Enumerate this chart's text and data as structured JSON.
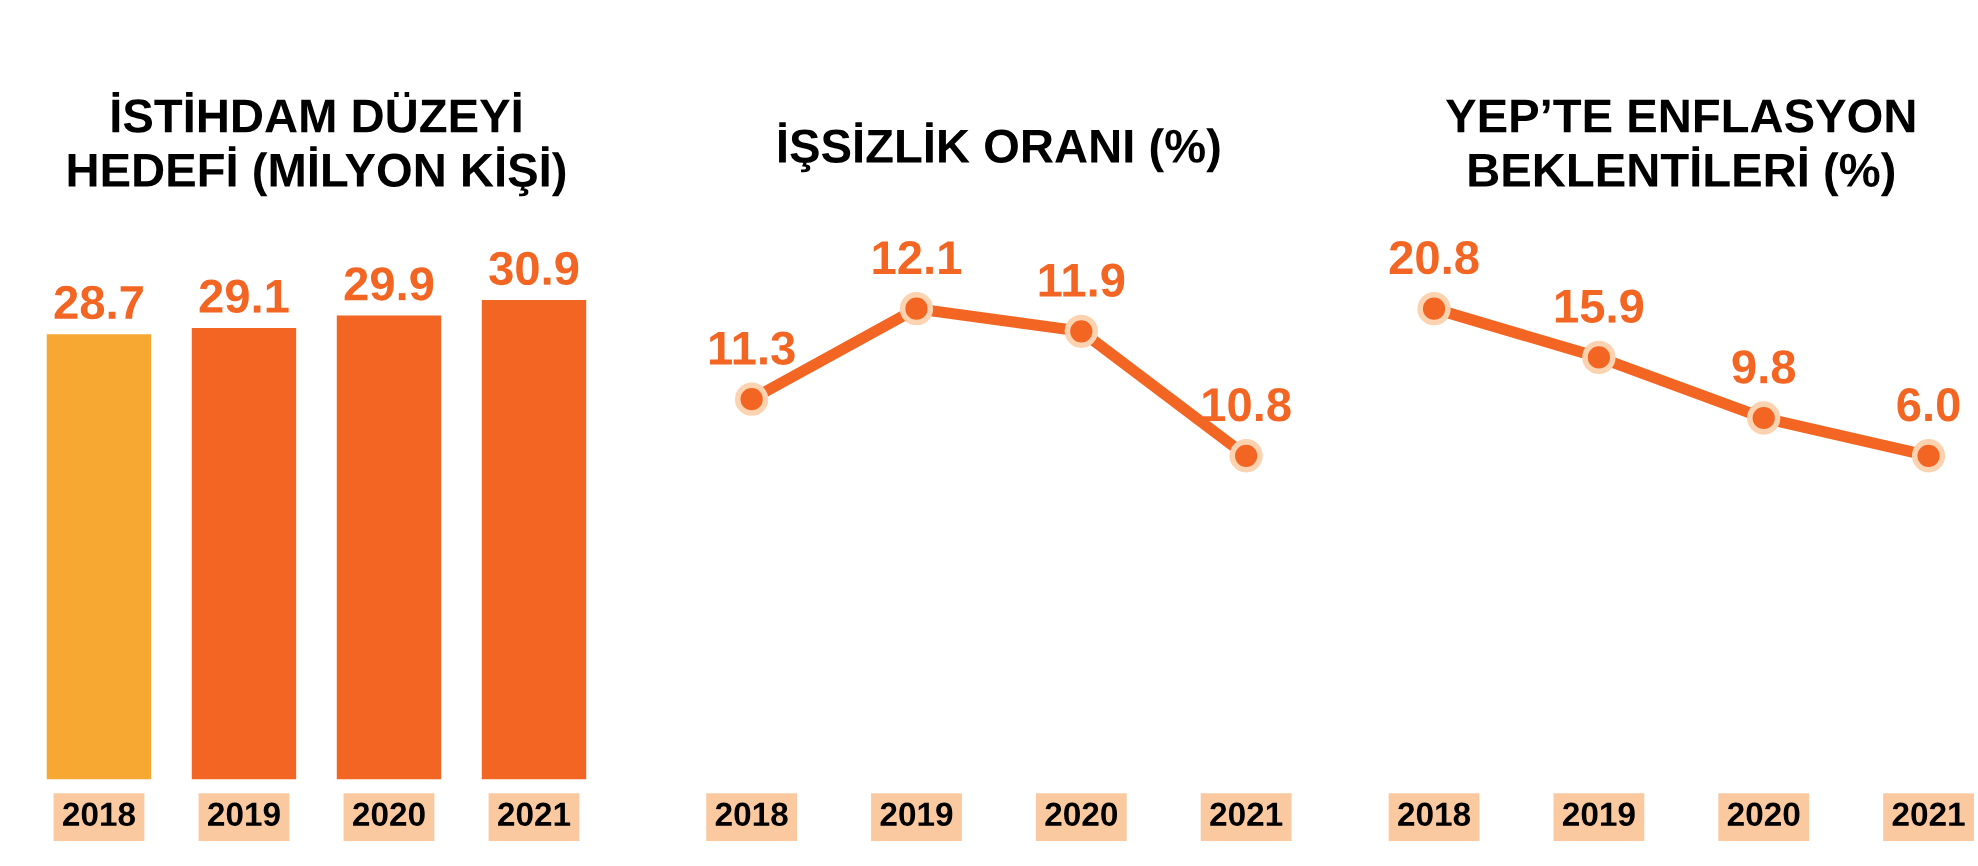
{
  "chart_data": [
    {
      "type": "bar",
      "title": "İSTİHDAM DÜZEYİ\nHEDEFİ (MİLYON KİŞİ)",
      "categories": [
        "2018",
        "2019",
        "2020",
        "2021"
      ],
      "values": [
        28.7,
        29.1,
        29.9,
        30.9
      ],
      "colors": [
        "#f7a833",
        "#f26522",
        "#f26522",
        "#f26522"
      ],
      "data_labels": true
    },
    {
      "type": "line",
      "title": "İŞSİZLİK ORANI (%)",
      "categories": [
        "2018",
        "2019",
        "2020",
        "2021"
      ],
      "series": [
        {
          "color": "#f26522",
          "values": [
            11.3,
            12.1,
            11.9,
            10.8
          ]
        }
      ],
      "marker": "circle",
      "line_style": "solid",
      "data_labels": true
    },
    {
      "type": "line",
      "title": "YEP’TE ENFLASYON\nBEKLENTİLERİ (%)",
      "categories": [
        "2018",
        "2019",
        "2020",
        "2021"
      ],
      "series": [
        {
          "color": "#f26522",
          "values": [
            20.8,
            15.9,
            9.8,
            6.0
          ],
          "value_labels": [
            "20.8",
            "15.9",
            "9.8",
            "6.0"
          ]
        }
      ],
      "marker": "circle",
      "line_style": "solid",
      "data_labels": true
    }
  ]
}
